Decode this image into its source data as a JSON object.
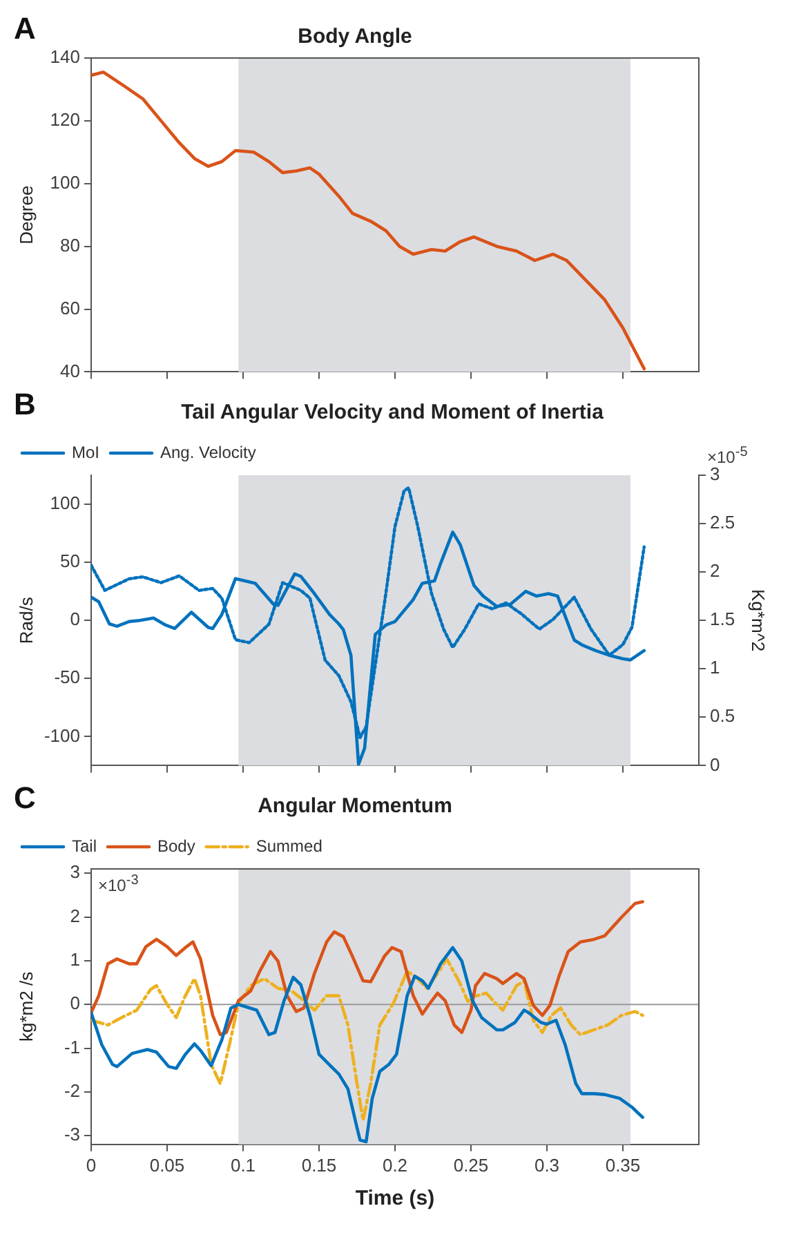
{
  "chart_data": [
    {
      "type": "line",
      "title": "Body Angle",
      "ylabel": "Degree",
      "annotations": [
        "A"
      ],
      "xlim": [
        0,
        0.4
      ],
      "xticks": [
        0,
        0.05,
        0.1,
        0.15,
        0.2,
        0.25,
        0.3,
        0.35
      ],
      "ylim": [
        40,
        140
      ],
      "yticks": [
        40,
        60,
        80,
        100,
        120,
        140
      ],
      "tick_labels": "y",
      "bands": [
        {
          "axis": "x",
          "from": 0.097,
          "to": 0.355,
          "color": "#dcdde0"
        }
      ],
      "series": [
        {
          "color": "#d95319",
          "x": [
            0,
            0.008,
            0.022,
            0.034,
            0.046,
            0.058,
            0.068,
            0.077,
            0.086,
            0.095,
            0.107,
            0.117,
            0.126,
            0.135,
            0.144,
            0.15,
            0.163,
            0.172,
            0.184,
            0.194,
            0.203,
            0.212,
            0.224,
            0.233,
            0.243,
            0.252,
            0.267,
            0.28,
            0.292,
            0.304,
            0.313,
            0.326,
            0.338,
            0.35,
            0.364
          ],
          "values": [
            134.5,
            135.5,
            131,
            127,
            120,
            113,
            108,
            105.5,
            107,
            110.5,
            110,
            107,
            103.5,
            104,
            105,
            103,
            96,
            90.5,
            88,
            85,
            80,
            77.5,
            79,
            78.5,
            81.5,
            83,
            80,
            78.5,
            75.5,
            77.5,
            75.5,
            69,
            63,
            54,
            41
          ]
        }
      ]
    },
    {
      "type": "line",
      "title": "Tail Angular Velocity and Moment of Inertia",
      "ylabel": "Rad/s",
      "y2label": "Kg*m^2",
      "annotations": [
        "B",
        "×10$^{-5}$"
      ],
      "legend": "top left",
      "xlim": [
        0,
        0.4
      ],
      "xticks": [
        0,
        0.05,
        0.1,
        0.15,
        0.2,
        0.25,
        0.3,
        0.35
      ],
      "ylim": [
        -125,
        125
      ],
      "yticks": [
        -100,
        -50,
        0,
        50,
        100
      ],
      "y2lim": [
        0,
        3
      ],
      "y2ticks": [
        0,
        0.5,
        1,
        1.5,
        2,
        2.5,
        3
      ],
      "tick_labels": "y",
      "bands": [
        {
          "axis": "x",
          "from": 0.097,
          "to": 0.355,
          "color": "#dcdde0"
        }
      ],
      "series": [
        {
          "name": "MoI",
          "color": "#0072bd",
          "axis": "y2",
          "line_style": "dotted",
          "x": [
            0,
            0.009,
            0.025,
            0.034,
            0.046,
            0.058,
            0.071,
            0.08,
            0.086,
            0.095,
            0.104,
            0.117,
            0.126,
            0.138,
            0.144,
            0.154,
            0.163,
            0.171,
            0.177,
            0.181,
            0.186,
            0.194,
            0.2,
            0.206,
            0.209,
            0.215,
            0.224,
            0.232,
            0.238,
            0.246,
            0.255,
            0.264,
            0.273,
            0.283,
            0.295,
            0.304,
            0.318,
            0.329,
            0.341,
            0.35,
            0.356,
            0.364
          ],
          "values": [
            2.07,
            1.81,
            1.93,
            1.95,
            1.89,
            1.96,
            1.81,
            1.83,
            1.73,
            1.3,
            1.27,
            1.46,
            1.89,
            1.81,
            1.73,
            1.09,
            0.93,
            0.66,
            0.29,
            0.4,
            0.93,
            1.78,
            2.47,
            2.84,
            2.87,
            2.47,
            1.78,
            1.41,
            1.22,
            1.41,
            1.67,
            1.62,
            1.68,
            1.57,
            1.41,
            1.51,
            1.74,
            1.41,
            1.14,
            1.25,
            1.43,
            2.26
          ]
        },
        {
          "name": "Ang. Velocity",
          "color": "#0072bd",
          "line_style": "solid",
          "x": [
            0,
            0.005,
            0.012,
            0.017,
            0.025,
            0.032,
            0.041,
            0.049,
            0.055,
            0.066,
            0.077,
            0.08,
            0.086,
            0.095,
            0.108,
            0.12,
            0.123,
            0.134,
            0.138,
            0.147,
            0.157,
            0.163,
            0.166,
            0.171,
            0.176,
            0.18,
            0.187,
            0.194,
            0.2,
            0.212,
            0.218,
            0.226,
            0.23,
            0.238,
            0.243,
            0.252,
            0.258,
            0.267,
            0.276,
            0.286,
            0.293,
            0.301,
            0.307,
            0.318,
            0.323,
            0.332,
            0.341,
            0.35,
            0.355,
            0.364
          ],
          "values": [
            20,
            16,
            -3,
            -5,
            -1,
            0,
            2,
            -4,
            -7,
            7,
            -6,
            -7,
            5,
            36,
            32,
            14,
            13,
            40,
            38,
            23,
            5,
            -3,
            -8,
            -30,
            -124,
            -110,
            -12,
            -4,
            -1,
            18,
            32,
            34,
            49,
            76,
            65,
            30,
            21,
            12,
            14,
            25,
            21,
            23,
            21,
            -17,
            -21,
            -26,
            -30,
            -33,
            -34,
            -26
          ]
        }
      ]
    },
    {
      "type": "line",
      "title": "Angular Momentum",
      "xlabel": "Time (s)",
      "ylabel": "kg*m2 /s",
      "annotations": [
        "C",
        "×10$^{-3}$"
      ],
      "legend": "top left",
      "xlim": [
        0,
        0.4
      ],
      "xticks": [
        0,
        0.05,
        0.1,
        0.15,
        0.2,
        0.25,
        0.3,
        0.35
      ],
      "ylim": [
        -3.2,
        3.1
      ],
      "yticks": [
        -3,
        -2,
        -1,
        0,
        1,
        2,
        3
      ],
      "bands": [
        {
          "axis": "x",
          "from": 0.097,
          "to": 0.355,
          "color": "#dcdde0"
        }
      ],
      "ref_lines": [
        {
          "axis": "y",
          "value": 0,
          "color": "#9a9a9a"
        }
      ],
      "series": [
        {
          "name": "Tail",
          "color": "#0072bd",
          "line_style": "solid",
          "x": [
            0,
            0.007,
            0.014,
            0.017,
            0.027,
            0.037,
            0.043,
            0.051,
            0.056,
            0.062,
            0.068,
            0.072,
            0.079,
            0.086,
            0.092,
            0.097,
            0.109,
            0.117,
            0.121,
            0.127,
            0.133,
            0.138,
            0.144,
            0.15,
            0.158,
            0.163,
            0.169,
            0.175,
            0.177,
            0.181,
            0.185,
            0.19,
            0.196,
            0.201,
            0.208,
            0.213,
            0.218,
            0.222,
            0.23,
            0.238,
            0.244,
            0.251,
            0.257,
            0.267,
            0.271,
            0.279,
            0.285,
            0.288,
            0.296,
            0.3,
            0.306,
            0.312,
            0.319,
            0.323,
            0.331,
            0.338,
            0.348,
            0.356,
            0.363
          ],
          "values": [
            -0.19,
            -0.92,
            -1.37,
            -1.42,
            -1.12,
            -1.03,
            -1.09,
            -1.42,
            -1.46,
            -1.14,
            -0.9,
            -1.05,
            -1.4,
            -0.81,
            -0.08,
            0,
            -0.13,
            -0.69,
            -0.64,
            0.09,
            0.62,
            0.45,
            -0.25,
            -1.14,
            -1.42,
            -1.59,
            -1.93,
            -2.82,
            -3.1,
            -3.14,
            -2.15,
            -1.53,
            -1.37,
            -1.14,
            0.2,
            0.65,
            0.54,
            0.37,
            0.93,
            1.3,
            0.99,
            0.09,
            -0.3,
            -0.58,
            -0.58,
            -0.41,
            -0.13,
            -0.19,
            -0.41,
            -0.45,
            -0.36,
            -0.92,
            -1.81,
            -2.04,
            -2.04,
            -2.06,
            -2.15,
            -2.35,
            -2.58
          ]
        },
        {
          "name": "Body",
          "color": "#d95319",
          "line_style": "solid",
          "x": [
            0,
            0.005,
            0.011,
            0.017,
            0.025,
            0.03,
            0.036,
            0.043,
            0.05,
            0.056,
            0.062,
            0.067,
            0.072,
            0.08,
            0.085,
            0.089,
            0.097,
            0.105,
            0.111,
            0.118,
            0.123,
            0.129,
            0.135,
            0.14,
            0.147,
            0.155,
            0.16,
            0.166,
            0.172,
            0.179,
            0.184,
            0.193,
            0.198,
            0.204,
            0.212,
            0.218,
            0.222,
            0.228,
            0.233,
            0.239,
            0.244,
            0.25,
            0.253,
            0.259,
            0.267,
            0.271,
            0.28,
            0.285,
            0.291,
            0.297,
            0.302,
            0.308,
            0.314,
            0.322,
            0.331,
            0.338,
            0.349,
            0.358,
            0.363
          ],
          "values": [
            -0.19,
            0.2,
            0.93,
            1.04,
            0.93,
            0.93,
            1.32,
            1.49,
            1.32,
            1.12,
            1.3,
            1.43,
            1.04,
            -0.25,
            -0.69,
            -0.64,
            0.09,
            0.31,
            0.76,
            1.21,
            0.99,
            0.2,
            -0.16,
            -0.08,
            0.71,
            1.43,
            1.66,
            1.55,
            1.1,
            0.54,
            0.52,
            1.1,
            1.3,
            1.21,
            0.2,
            -0.22,
            -0.02,
            0.26,
            0.09,
            -0.47,
            -0.64,
            -0.13,
            0.43,
            0.71,
            0.59,
            0.48,
            0.71,
            0.59,
            -0.02,
            -0.25,
            -0.02,
            0.65,
            1.21,
            1.43,
            1.49,
            1.57,
            1.99,
            2.31,
            2.35
          ]
        },
        {
          "name": "Summed",
          "color": "#edb120",
          "line_style": "dashed",
          "x": [
            0,
            0.011,
            0.02,
            0.03,
            0.039,
            0.043,
            0.05,
            0.056,
            0.062,
            0.068,
            0.072,
            0.079,
            0.085,
            0.091,
            0.097,
            0.105,
            0.114,
            0.123,
            0.132,
            0.14,
            0.147,
            0.155,
            0.163,
            0.169,
            0.175,
            0.179,
            0.184,
            0.19,
            0.199,
            0.208,
            0.215,
            0.221,
            0.228,
            0.234,
            0.242,
            0.248,
            0.254,
            0.26,
            0.267,
            0.271,
            0.28,
            0.285,
            0.291,
            0.297,
            0.303,
            0.309,
            0.316,
            0.322,
            0.331,
            0.34,
            0.349,
            0.358,
            0.363
          ],
          "values": [
            -0.36,
            -0.47,
            -0.3,
            -0.13,
            0.34,
            0.43,
            0,
            -0.3,
            0.2,
            0.59,
            0.2,
            -1.37,
            -1.81,
            -0.92,
            0.03,
            0.43,
            0.59,
            0.37,
            0.31,
            0.09,
            -0.13,
            0.2,
            0.2,
            -0.47,
            -1.81,
            -2.65,
            -1.81,
            -0.47,
            0.03,
            0.76,
            0.59,
            0.37,
            0.71,
            1.04,
            0.54,
            0.07,
            0.2,
            0.26,
            0,
            -0.13,
            0.43,
            0.54,
            -0.36,
            -0.64,
            -0.25,
            -0.08,
            -0.47,
            -0.69,
            -0.58,
            -0.47,
            -0.25,
            -0.16,
            -0.25
          ]
        }
      ]
    }
  ]
}
